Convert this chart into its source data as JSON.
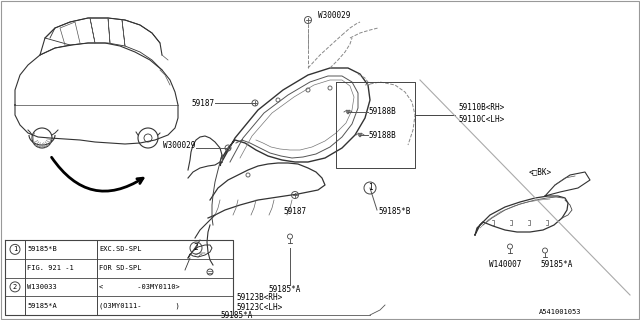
{
  "bg_color": "#ffffff",
  "line_color": "#444444",
  "text_color": "#000000",
  "diagram_id": "A541001053",
  "labels": {
    "W300029_top": "W300029",
    "W300029_mid": "W300029",
    "W140007": "W140007",
    "p59187_top": "59187",
    "p59187_mid": "59187",
    "p59185B": "59185*B",
    "p59185A_bot1": "59185*A",
    "p59185A_bot2": "59185*A",
    "p59185A_bot3": "59185*A",
    "p59185A_right": "59185*A",
    "p59188B_top": "59188B",
    "p59188B_bot": "59188B",
    "p59110B": "59110B<RH>",
    "p59110C": "59110C<LH>",
    "p59123B": "59123B<RH>",
    "p59123C": "59123C<LH>",
    "bk_label": "<□BK>",
    "diagram_ref": "A541001053"
  },
  "table_rows": [
    [
      "1",
      "59185*B",
      "EXC.SD-SPL"
    ],
    [
      "",
      "FIG. 921 -1",
      "FOR SD-SPL"
    ],
    [
      "2",
      "W130033",
      "<        -03MY0110>"
    ],
    [
      "",
      "59185*A",
      "(O3MY0111-        )"
    ]
  ],
  "fs": 6.0,
  "fs_s": 5.5
}
